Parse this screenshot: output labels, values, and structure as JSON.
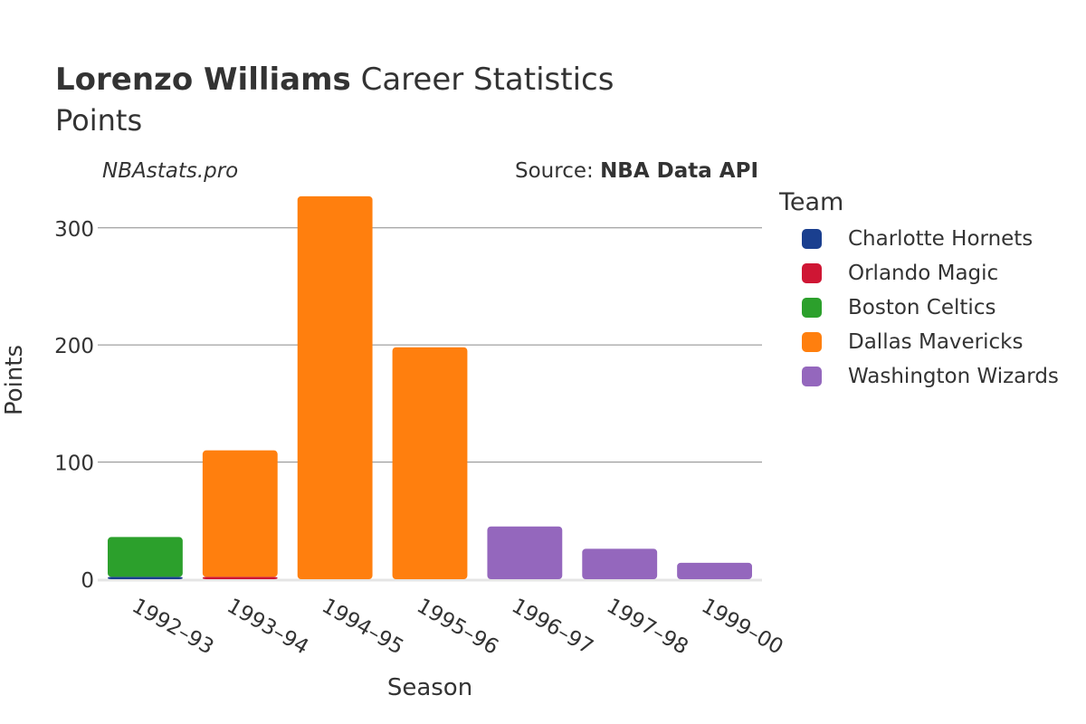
{
  "header": {
    "title_bold": "Lorenzo Williams",
    "title_rest": " Career Statistics",
    "subtitle": "Points",
    "watermark": "NBAstats.pro",
    "source_prefix": "Source: ",
    "source_name": "NBA Data API"
  },
  "legend": {
    "title": "Team",
    "items": [
      {
        "label": "Charlotte Hornets",
        "color": "#1a3f8f"
      },
      {
        "label": "Orlando Magic",
        "color": "#cf1634"
      },
      {
        "label": "Boston Celtics",
        "color": "#2ca02c"
      },
      {
        "label": "Dallas Mavericks",
        "color": "#ff7f0e"
      },
      {
        "label": "Washington Wizards",
        "color": "#9467bd"
      }
    ]
  },
  "chart_data": {
    "type": "bar",
    "stacked": true,
    "xlabel": "Season",
    "ylabel": "Points",
    "ylim": [
      0,
      340
    ],
    "yticks": [
      0,
      100,
      200,
      300
    ],
    "grid": true,
    "legend_position": "right",
    "categories": [
      "1992–93",
      "1993–94",
      "1994–95",
      "1995–96",
      "1996–97",
      "1997–98",
      "1999–00"
    ],
    "series": [
      {
        "name": "Charlotte Hornets",
        "color": "#1a3f8f",
        "values": [
          2,
          0,
          0,
          0,
          0,
          0,
          0
        ]
      },
      {
        "name": "Orlando Magic",
        "color": "#cf1634",
        "values": [
          0,
          2,
          0,
          0,
          0,
          0,
          0
        ]
      },
      {
        "name": "Boston Celtics",
        "color": "#2ca02c",
        "values": [
          34,
          0,
          0,
          0,
          0,
          0,
          0
        ]
      },
      {
        "name": "Dallas Mavericks",
        "color": "#ff7f0e",
        "values": [
          0,
          108,
          327,
          198,
          0,
          0,
          0
        ]
      },
      {
        "name": "Washington Wizards",
        "color": "#9467bd",
        "values": [
          0,
          0,
          0,
          0,
          45,
          26,
          14
        ]
      }
    ]
  }
}
